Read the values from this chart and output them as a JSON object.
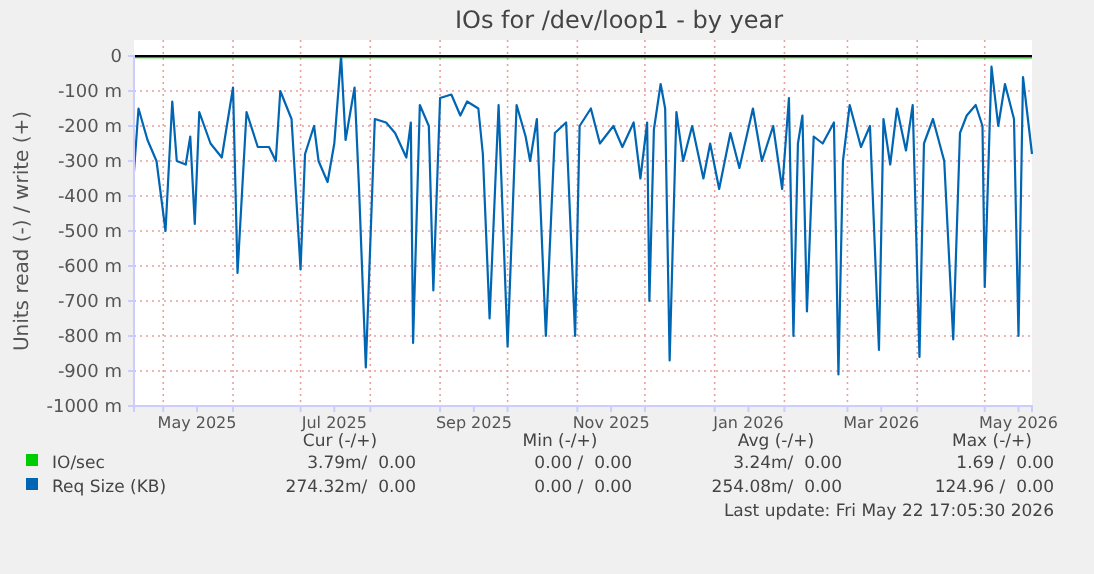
{
  "chart_data": {
    "type": "line",
    "title": "IOs for /dev/loop1 - by year",
    "ylabel": "Units read (-) / write (+)",
    "xlim": [
      "2025-04-18",
      "2026-05-22"
    ],
    "xticks": [
      {
        "value": "2025-05-01",
        "label": null
      },
      {
        "value": "2025-05-16",
        "label": "May 2025"
      },
      {
        "value": "2025-06-01",
        "label": null
      },
      {
        "value": "2025-07-01",
        "label": null
      },
      {
        "value": "2025-07-16",
        "label": "Jul 2025"
      },
      {
        "value": "2025-08-01",
        "label": null
      },
      {
        "value": "2025-09-01",
        "label": null
      },
      {
        "value": "2025-09-16",
        "label": "Sep 2025"
      },
      {
        "value": "2025-10-01",
        "label": null
      },
      {
        "value": "2025-11-01",
        "label": null
      },
      {
        "value": "2025-11-16",
        "label": "Nov 2025"
      },
      {
        "value": "2025-12-01",
        "label": null
      },
      {
        "value": "2026-01-01",
        "label": null
      },
      {
        "value": "2026-01-16",
        "label": "Jan 2026"
      },
      {
        "value": "2026-02-01",
        "label": null
      },
      {
        "value": "2026-03-01",
        "label": null
      },
      {
        "value": "2026-03-16",
        "label": "Mar 2026"
      },
      {
        "value": "2026-04-01",
        "label": null
      },
      {
        "value": "2026-05-01",
        "label": null
      },
      {
        "value": "2026-05-16",
        "label": "May 2026"
      }
    ],
    "ylim": [
      -1000,
      0
    ],
    "yticks": [
      {
        "value": 0,
        "label": "0"
      },
      {
        "value": -100,
        "label": "-100 m"
      },
      {
        "value": -200,
        "label": "-200 m"
      },
      {
        "value": -300,
        "label": "-300 m"
      },
      {
        "value": -400,
        "label": "-400 m"
      },
      {
        "value": -500,
        "label": "-500 m"
      },
      {
        "value": -600,
        "label": "-600 m"
      },
      {
        "value": -700,
        "label": "-700 m"
      },
      {
        "value": -800,
        "label": "-800 m"
      },
      {
        "value": -900,
        "label": "-900 m"
      },
      {
        "value": -1000,
        "label": "-1000 m"
      }
    ],
    "grid": true,
    "legend": "bottom",
    "line_style": "solid",
    "marker": "none",
    "ref_lines": [
      {
        "axis": "y",
        "value": 0,
        "color": "#000000"
      }
    ],
    "series": [
      {
        "name": "IO/sec",
        "color": "#00cc00",
        "x": [
          "2025-04-18",
          "2025-06-01",
          "2025-07-19",
          "2025-09-01",
          "2025-11-01",
          "2026-01-01",
          "2026-03-01",
          "2026-05-22"
        ],
        "values": [
          -3,
          -3,
          -3,
          -3,
          -3,
          -3,
          -3,
          -4
        ]
      },
      {
        "name": "Req Size (KB)",
        "color": "#0066b3",
        "x": [
          "2025-04-18",
          "2025-04-20",
          "2025-04-24",
          "2025-04-28",
          "2025-05-02",
          "2025-05-05",
          "2025-05-07",
          "2025-05-11",
          "2025-05-13",
          "2025-05-15",
          "2025-05-17",
          "2025-05-22",
          "2025-05-27",
          "2025-06-01",
          "2025-06-03",
          "2025-06-07",
          "2025-06-12",
          "2025-06-17",
          "2025-06-20",
          "2025-06-22",
          "2025-06-27",
          "2025-07-01",
          "2025-07-03",
          "2025-07-07",
          "2025-07-09",
          "2025-07-13",
          "2025-07-16",
          "2025-07-19",
          "2025-07-21",
          "2025-07-25",
          "2025-07-27",
          "2025-07-30",
          "2025-08-03",
          "2025-08-08",
          "2025-08-12",
          "2025-08-17",
          "2025-08-19",
          "2025-08-20",
          "2025-08-23",
          "2025-08-27",
          "2025-08-29",
          "2025-09-01",
          "2025-09-06",
          "2025-09-10",
          "2025-09-13",
          "2025-09-18",
          "2025-09-20",
          "2025-09-23",
          "2025-09-27",
          "2025-10-01",
          "2025-10-05",
          "2025-10-09",
          "2025-10-11",
          "2025-10-14",
          "2025-10-18",
          "2025-10-22",
          "2025-10-27",
          "2025-10-31",
          "2025-11-02",
          "2025-11-07",
          "2025-11-11",
          "2025-11-17",
          "2025-11-21",
          "2025-11-26",
          "2025-11-29",
          "2025-12-02",
          "2025-12-03",
          "2025-12-05",
          "2025-12-08",
          "2025-12-10",
          "2025-12-12",
          "2025-12-15",
          "2025-12-18",
          "2025-12-22",
          "2025-12-27",
          "2025-12-30",
          "2026-01-03",
          "2026-01-08",
          "2026-01-12",
          "2026-01-18",
          "2026-01-22",
          "2026-01-27",
          "2026-01-31",
          "2026-02-03",
          "2026-02-05",
          "2026-02-07",
          "2026-02-09",
          "2026-02-11",
          "2026-02-14",
          "2026-02-18",
          "2026-02-23",
          "2026-02-25",
          "2026-02-27",
          "2026-03-02",
          "2026-03-07",
          "2026-03-11",
          "2026-03-15",
          "2026-03-17",
          "2026-03-20",
          "2026-03-23",
          "2026-03-27",
          "2026-03-30",
          "2026-04-02",
          "2026-04-04",
          "2026-04-08",
          "2026-04-13",
          "2026-04-17",
          "2026-04-20",
          "2026-04-23",
          "2026-04-27",
          "2026-04-30",
          "2026-05-01",
          "2026-05-04",
          "2026-05-07",
          "2026-05-10",
          "2026-05-14",
          "2026-05-16",
          "2026-05-18",
          "2026-05-22"
        ],
        "values": [
          -330,
          -150,
          -240,
          -300,
          -500,
          -130,
          -300,
          -310,
          -230,
          -480,
          -160,
          -250,
          -290,
          -90,
          -620,
          -160,
          -260,
          -260,
          -300,
          -100,
          -180,
          -610,
          -280,
          -200,
          -300,
          -360,
          -250,
          0,
          -240,
          -90,
          -380,
          -890,
          -180,
          -190,
          -220,
          -290,
          -190,
          -820,
          -140,
          -200,
          -670,
          -120,
          -110,
          -170,
          -130,
          -150,
          -280,
          -750,
          -140,
          -830,
          -140,
          -230,
          -300,
          -180,
          -800,
          -220,
          -190,
          -800,
          -200,
          -150,
          -250,
          -200,
          -260,
          -190,
          -350,
          -190,
          -700,
          -210,
          -80,
          -150,
          -870,
          -160,
          -300,
          -200,
          -350,
          -250,
          -380,
          -220,
          -320,
          -150,
          -300,
          -200,
          -380,
          -120,
          -800,
          -250,
          -170,
          -730,
          -230,
          -250,
          -190,
          -910,
          -300,
          -140,
          -260,
          -200,
          -840,
          -180,
          -310,
          -150,
          -270,
          -140,
          -860,
          -250,
          -180,
          -300,
          -810,
          -220,
          -170,
          -140,
          -200,
          -660,
          -30,
          -200,
          -80,
          -180,
          -800,
          -60,
          -280
        ]
      }
    ],
    "annotations": [
      "Cur (-/+)",
      "Min (-/+)",
      "Avg (-/+)",
      "Max (-/+)",
      "3.79m/  0.00",
      "0.00 /  0.00",
      "3.24m/  0.00",
      "1.69 /  0.00",
      "274.32m/  0.00",
      "0.00 /  0.00",
      "254.08m/  0.00",
      "124.96 /  0.00",
      "Last update: Fri May 22 17:05:30 2026"
    ]
  }
}
